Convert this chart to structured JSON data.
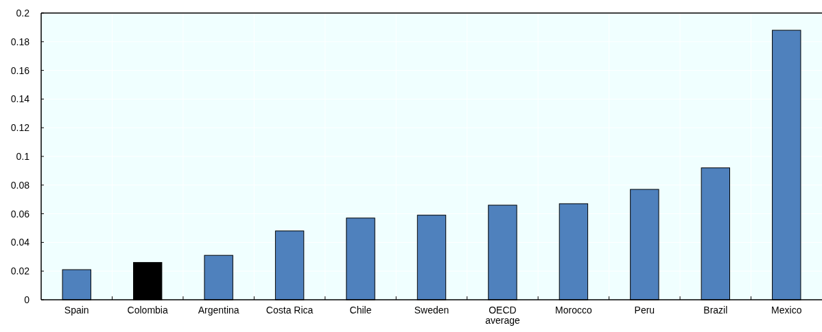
{
  "chart_data": {
    "type": "bar",
    "categories": [
      "Spain",
      "Colombia",
      "Argentina",
      "Costa Rica",
      "Chile",
      "Sweden",
      "OECD average",
      "Morocco",
      "Peru",
      "Brazil",
      "Mexico"
    ],
    "values": [
      0.021,
      0.026,
      0.031,
      0.048,
      0.057,
      0.059,
      0.066,
      0.067,
      0.077,
      0.092,
      0.188
    ],
    "colors": [
      "#4f81bd",
      "#000000",
      "#4f81bd",
      "#4f81bd",
      "#4f81bd",
      "#4f81bd",
      "#4f81bd",
      "#4f81bd",
      "#4f81bd",
      "#4f81bd",
      "#4f81bd"
    ],
    "ylim": [
      0,
      0.2
    ],
    "yticks": [
      0,
      0.02,
      0.04,
      0.06,
      0.08,
      0.1,
      0.12,
      0.14,
      0.16,
      0.18,
      0.2
    ],
    "grid": true
  }
}
